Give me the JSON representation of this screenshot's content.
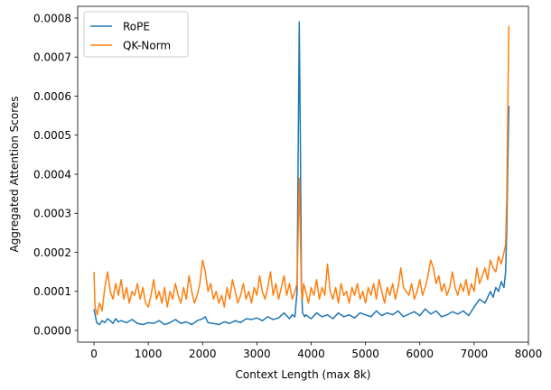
{
  "chart_data": {
    "type": "line",
    "title": "",
    "xlabel": "Context Length (max 8k)",
    "ylabel": "Aggregated Attention Scores",
    "xlim": [
      -300,
      8000
    ],
    "ylim": [
      -3e-05,
      0.00083
    ],
    "xticks": [
      0,
      1000,
      2000,
      3000,
      4000,
      5000,
      6000,
      7000,
      8000
    ],
    "xtick_labels": [
      "0",
      "1000",
      "2000",
      "3000",
      "4000",
      "5000",
      "6000",
      "7000",
      "8000"
    ],
    "yticks": [
      0,
      0.0001,
      0.0002,
      0.0003,
      0.0004,
      0.0005,
      0.0006,
      0.0007,
      0.0008
    ],
    "ytick_labels": [
      "0.0000",
      "0.0001",
      "0.0002",
      "0.0003",
      "0.0004",
      "0.0005",
      "0.0006",
      "0.0007",
      "0.0008"
    ],
    "grid": false,
    "legend_position": "top-left",
    "series": [
      {
        "name": "RoPE",
        "color": "#1f77b4",
        "x": [
          0,
          50,
          100,
          150,
          200,
          250,
          300,
          350,
          400,
          450,
          500,
          600,
          700,
          800,
          900,
          1000,
          1100,
          1200,
          1300,
          1400,
          1500,
          1600,
          1700,
          1800,
          1900,
          2000,
          2050,
          2100,
          2200,
          2300,
          2400,
          2500,
          2600,
          2700,
          2800,
          2900,
          3000,
          3100,
          3200,
          3300,
          3400,
          3500,
          3600,
          3650,
          3700,
          3740,
          3760,
          3780,
          3800,
          3820,
          3840,
          3860,
          3880,
          3900,
          4000,
          4100,
          4200,
          4300,
          4400,
          4500,
          4600,
          4700,
          4800,
          4900,
          5000,
          5100,
          5200,
          5300,
          5400,
          5500,
          5600,
          5700,
          5800,
          5900,
          6000,
          6100,
          6200,
          6300,
          6400,
          6500,
          6600,
          6700,
          6800,
          6900,
          7000,
          7100,
          7200,
          7300,
          7350,
          7400,
          7450,
          7500,
          7550,
          7580,
          7600,
          7620,
          7640
        ],
        "y": [
          5.5e-05,
          2e-05,
          1.5e-05,
          2.5e-05,
          2e-05,
          3e-05,
          2.5e-05,
          1.8e-05,
          3e-05,
          2.2e-05,
          2.5e-05,
          2e-05,
          2.8e-05,
          1.8e-05,
          1.5e-05,
          2e-05,
          1.8e-05,
          2.5e-05,
          1.5e-05,
          2e-05,
          2.8e-05,
          1.8e-05,
          2.2e-05,
          1.5e-05,
          2.5e-05,
          3e-05,
          3.5e-05,
          2e-05,
          1.8e-05,
          1.5e-05,
          2.2e-05,
          1.8e-05,
          2.5e-05,
          2e-05,
          3e-05,
          2.8e-05,
          3.2e-05,
          2.5e-05,
          3.5e-05,
          2.8e-05,
          3.2e-05,
          4.5e-05,
          3e-05,
          4e-05,
          3.5e-05,
          0.0001,
          0.00045,
          0.00079,
          0.0005,
          0.00012,
          4.5e-05,
          4e-05,
          3.5e-05,
          4e-05,
          3e-05,
          4.5e-05,
          3.5e-05,
          4e-05,
          3e-05,
          4.5e-05,
          3.5e-05,
          4e-05,
          3.2e-05,
          4.5e-05,
          4e-05,
          3.5e-05,
          5e-05,
          3.8e-05,
          4.5e-05,
          4e-05,
          5e-05,
          3.5e-05,
          4.2e-05,
          4.8e-05,
          3.8e-05,
          5.5e-05,
          4.2e-05,
          5e-05,
          3.5e-05,
          4e-05,
          4.8e-05,
          4.2e-05,
          5e-05,
          3.8e-05,
          6e-05,
          8e-05,
          7e-05,
          0.0001,
          8.5e-05,
          0.00011,
          0.0001,
          0.000125,
          0.00011,
          0.00015,
          0.00025,
          0.00042,
          0.000575
        ]
      },
      {
        "name": "QK-Norm",
        "color": "#ff7f0e",
        "x": [
          0,
          20,
          60,
          100,
          150,
          200,
          250,
          300,
          350,
          400,
          450,
          500,
          550,
          600,
          650,
          700,
          750,
          800,
          850,
          900,
          950,
          1000,
          1050,
          1100,
          1150,
          1200,
          1250,
          1300,
          1350,
          1400,
          1450,
          1500,
          1550,
          1600,
          1650,
          1700,
          1750,
          1800,
          1850,
          1900,
          1950,
          2000,
          2050,
          2100,
          2150,
          2200,
          2250,
          2300,
          2350,
          2400,
          2450,
          2500,
          2550,
          2600,
          2650,
          2700,
          2750,
          2800,
          2850,
          2900,
          2950,
          3000,
          3050,
          3100,
          3150,
          3200,
          3250,
          3300,
          3350,
          3400,
          3450,
          3500,
          3550,
          3600,
          3650,
          3700,
          3740,
          3760,
          3780,
          3800,
          3820,
          3840,
          3860,
          3900,
          3950,
          4000,
          4050,
          4100,
          4150,
          4200,
          4250,
          4300,
          4350,
          4400,
          4450,
          4500,
          4550,
          4600,
          4650,
          4700,
          4750,
          4800,
          4850,
          4900,
          4950,
          5000,
          5050,
          5100,
          5150,
          5200,
          5250,
          5300,
          5350,
          5400,
          5450,
          5500,
          5550,
          5600,
          5650,
          5700,
          5750,
          5800,
          5850,
          5900,
          5950,
          6000,
          6050,
          6100,
          6150,
          6200,
          6250,
          6300,
          6350,
          6400,
          6450,
          6500,
          6550,
          6600,
          6650,
          6700,
          6750,
          6800,
          6850,
          6900,
          6950,
          7000,
          7050,
          7100,
          7150,
          7200,
          7250,
          7300,
          7350,
          7400,
          7450,
          7500,
          7550,
          7580,
          7600,
          7620,
          7640
        ],
        "y": [
          0.00015,
          6e-05,
          4e-05,
          7e-05,
          5e-05,
          0.00011,
          0.00015,
          0.0001,
          8e-05,
          0.00012,
          9e-05,
          0.00013,
          8e-05,
          0.00011,
          7e-05,
          0.0001,
          9e-05,
          0.00012,
          8e-05,
          0.00011,
          7e-05,
          6e-05,
          9e-05,
          0.00013,
          8e-05,
          0.0001,
          7e-05,
          0.00011,
          6e-05,
          0.0001,
          8e-05,
          0.00012,
          9e-05,
          7e-05,
          0.00011,
          8e-05,
          0.00014,
          0.0001,
          7e-05,
          9e-05,
          0.00012,
          0.00018,
          0.00015,
          0.0001,
          0.00012,
          8e-05,
          0.0001,
          7e-05,
          9e-05,
          6e-05,
          0.00011,
          8e-05,
          0.00013,
          0.0001,
          7e-05,
          9e-05,
          0.00012,
          8e-05,
          0.0001,
          7e-05,
          0.00011,
          9e-05,
          0.00014,
          0.0001,
          8e-05,
          0.00011,
          0.00015,
          9e-05,
          0.00012,
          8e-05,
          0.00011,
          0.00014,
          9e-05,
          0.00012,
          8e-05,
          0.0001,
          0.00012,
          0.00025,
          0.00039,
          0.00025,
          0.0001,
          8e-05,
          0.00012,
          0.0001,
          7e-05,
          0.00011,
          9e-05,
          0.00013,
          8e-05,
          0.00011,
          9e-05,
          0.00017,
          0.0001,
          8e-05,
          0.00011,
          7e-05,
          0.00012,
          9e-05,
          0.0001,
          7e-05,
          0.00011,
          9e-05,
          0.00012,
          8e-05,
          0.0001,
          7e-05,
          0.00011,
          9e-05,
          0.00012,
          8e-05,
          0.00013,
          0.0001,
          7e-05,
          0.00011,
          9e-05,
          0.00012,
          8e-05,
          0.00011,
          0.00016,
          0.00011,
          0.0001,
          9e-05,
          0.00012,
          8e-05,
          0.0001,
          0.00013,
          9e-05,
          0.00011,
          0.00014,
          0.00018,
          0.00016,
          0.00012,
          0.00014,
          0.0001,
          0.00012,
          9e-05,
          0.00011,
          0.00015,
          0.00011,
          9e-05,
          0.00012,
          0.0001,
          0.00013,
          9e-05,
          0.00012,
          0.0001,
          0.00016,
          0.00012,
          0.00014,
          0.00016,
          0.00013,
          0.00018,
          0.00016,
          0.00015,
          0.00019,
          0.00017,
          0.0002,
          0.00022,
          0.00033,
          0.00056,
          0.00078
        ]
      }
    ]
  }
}
